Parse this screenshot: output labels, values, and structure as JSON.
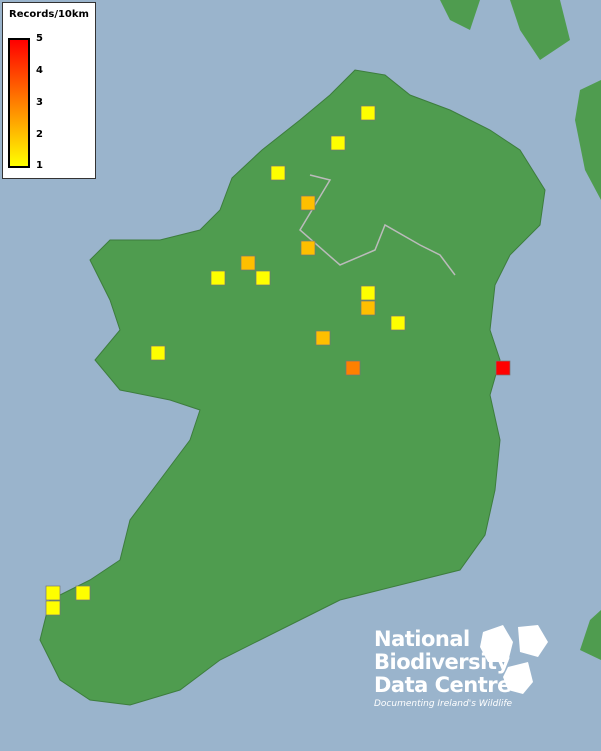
{
  "legend": {
    "title": "Records/10km",
    "ticks": [
      "5",
      "4",
      "3",
      "2",
      "1"
    ],
    "color_low": "#ffff00",
    "color_mid": "#ff8000",
    "color_high": "#ff0000"
  },
  "records": [
    {
      "value": 1
    },
    {
      "value": 1
    },
    {
      "value": 1
    },
    {
      "value": 2
    },
    {
      "value": 2
    },
    {
      "value": 2
    },
    {
      "value": 1
    },
    {
      "value": 1
    },
    {
      "value": 1
    },
    {
      "value": 2
    },
    {
      "value": 1
    },
    {
      "value": 2
    },
    {
      "value": 1
    },
    {
      "value": 3
    },
    {
      "value": 5
    },
    {
      "value": 1
    },
    {
      "value": 1
    },
    {
      "value": 1
    }
  ],
  "logo": {
    "line1": "National",
    "line2": "Biodiversity",
    "line3": "Data Centre",
    "tagline": "Documenting Ireland's Wildlife"
  },
  "colors": {
    "sea": "#9ab4cc",
    "land": "#4e9a4e"
  }
}
